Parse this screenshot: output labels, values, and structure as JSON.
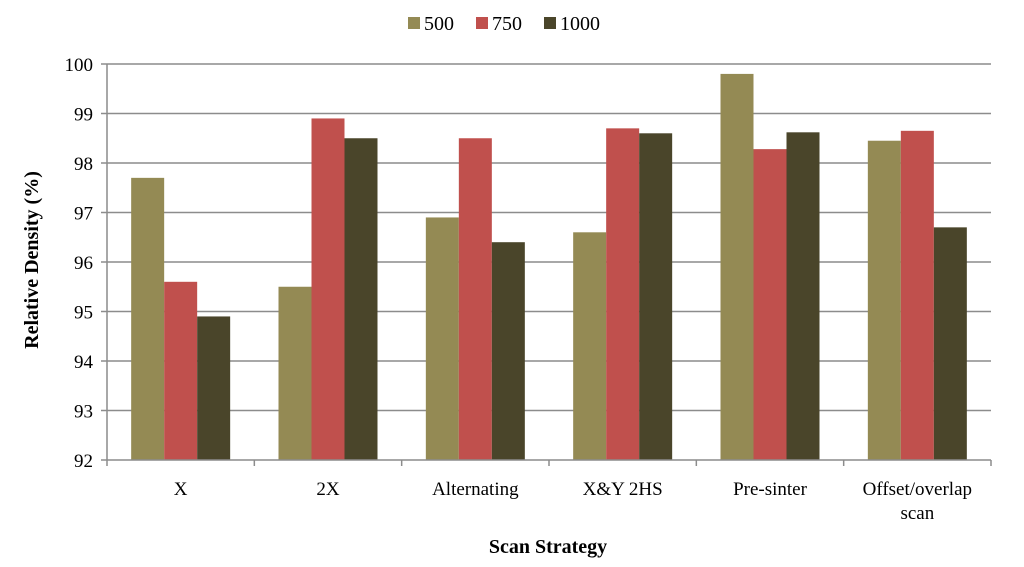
{
  "chart_data": {
    "type": "bar",
    "title": "",
    "xlabel": "Scan Strategy",
    "ylabel": "Relative Density (%)",
    "ylim": [
      92,
      100
    ],
    "yticks": [
      92,
      93,
      94,
      95,
      96,
      97,
      98,
      99,
      100
    ],
    "grid": true,
    "legend_position": "top",
    "categories": [
      [
        "X"
      ],
      [
        "2X"
      ],
      [
        "Alternating"
      ],
      [
        "X&Y 2HS"
      ],
      [
        "Pre-sinter"
      ],
      [
        "Offset/overlap",
        "scan"
      ]
    ],
    "series": [
      {
        "name": "500",
        "color": "#948a54",
        "values": [
          97.7,
          95.5,
          96.9,
          96.6,
          99.8,
          98.45
        ]
      },
      {
        "name": "750",
        "color": "#c0504d",
        "values": [
          95.6,
          98.9,
          98.5,
          98.7,
          98.28,
          98.65
        ]
      },
      {
        "name": "1000",
        "color": "#4a452a",
        "values": [
          94.9,
          98.5,
          96.4,
          98.6,
          98.62,
          96.7
        ]
      }
    ]
  }
}
